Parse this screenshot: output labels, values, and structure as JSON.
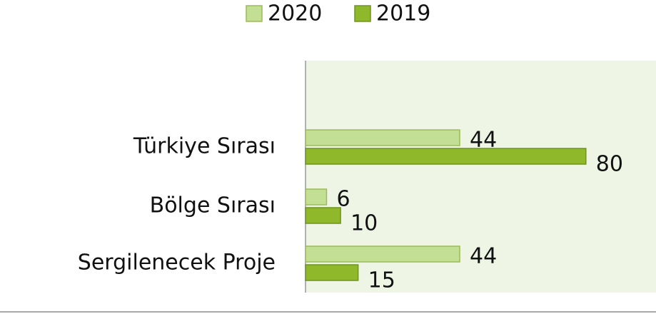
{
  "chart_data": {
    "type": "bar",
    "orientation": "horizontal",
    "categories": [
      "Türkiye Sırası",
      "Bölge Sırası",
      "Sergilenecek Proje"
    ],
    "series": [
      {
        "name": "2020",
        "color": "#c3df93",
        "values": [
          44,
          6,
          44
        ]
      },
      {
        "name": "2019",
        "color": "#8fb82b",
        "values": [
          80,
          10,
          15
        ]
      }
    ],
    "xlim": [
      0,
      100
    ],
    "legend": "top"
  }
}
